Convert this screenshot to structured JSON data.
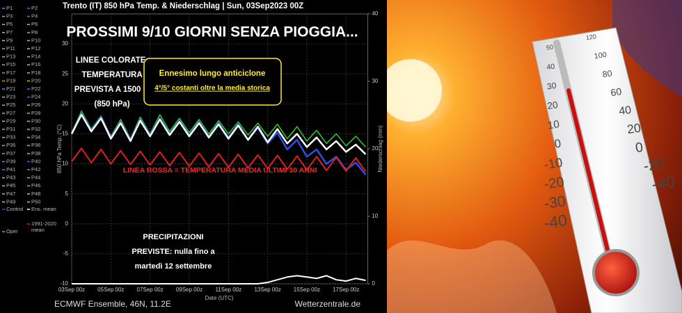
{
  "chart_data": {
    "type": "line",
    "title": "Trento  (IT)  850 hPa Temp. & Niederschlag | Sun, 03Sep2023 00Z",
    "ylabel": "850 hPa Temp. (°C)",
    "y2label": "Niederschlag (mm)",
    "xlabel": "Date (UTC)",
    "source_left": "ECMWF Ensemble, 46N, 11.2E",
    "source_right": "Wetterzentrale.de",
    "categories": [
      "03Sep 00z",
      null,
      null,
      null,
      "05Sep 00z",
      null,
      null,
      null,
      "07Sep 00z",
      null,
      null,
      null,
      "09Sep 00z",
      null,
      null,
      null,
      "11Sep 00z",
      null,
      null,
      null,
      "13Sep 00z",
      null,
      null,
      null,
      "15Sep 00z",
      null,
      null,
      null,
      "17Sep 00z",
      null,
      null
    ],
    "ylim": [
      -10,
      35
    ],
    "yticks": [
      -10,
      -5,
      0,
      5,
      10,
      15,
      20,
      25,
      30
    ],
    "y2lim": [
      0,
      40
    ],
    "y2ticks": [
      0,
      10,
      20,
      30,
      40
    ],
    "grid": true,
    "series": [
      {
        "name": "Oper",
        "color": "#2ecc2e",
        "width": 1.5,
        "values": [
          15.2,
          18.8,
          15.8,
          18.0,
          14.6,
          17.4,
          14.2,
          17.8,
          15.0,
          18.2,
          15.4,
          17.6,
          15.2,
          17.4,
          15.0,
          17.2,
          15.0,
          17.0,
          14.8,
          16.8,
          14.6,
          16.6,
          14.2,
          16.2,
          13.8,
          15.6,
          13.4,
          15.0,
          13.0,
          14.6,
          12.8
        ]
      },
      {
        "name": "Control",
        "color": "#2f4fe0",
        "width": 2.5,
        "values": [
          15.1,
          18.4,
          15.6,
          17.8,
          14.4,
          17.0,
          14.0,
          17.4,
          14.8,
          17.6,
          15.0,
          17.2,
          14.8,
          17.0,
          14.6,
          16.8,
          14.4,
          16.6,
          14.0,
          16.0,
          13.4,
          15.2,
          12.4,
          14.0,
          11.2,
          12.4,
          10.0,
          11.2,
          9.0,
          10.2,
          8.2
        ]
      },
      {
        "name": "1991-2020 mean",
        "color": "#e02020",
        "width": 2,
        "values": [
          10.4,
          12.6,
          10.2,
          12.4,
          10.0,
          12.2,
          9.9,
          12.1,
          9.8,
          12.0,
          9.7,
          11.9,
          9.6,
          11.8,
          9.5,
          11.7,
          9.4,
          11.6,
          9.3,
          11.5,
          9.2,
          11.4,
          9.1,
          11.3,
          9.0,
          11.2,
          8.9,
          11.1,
          8.8,
          11.0,
          8.7
        ]
      },
      {
        "name": "Ens. mean",
        "color": "#ffffff",
        "width": 2.5,
        "values": [
          15.0,
          18.2,
          15.4,
          17.6,
          14.2,
          16.8,
          13.8,
          17.2,
          14.6,
          17.4,
          14.8,
          17.0,
          14.6,
          16.8,
          14.4,
          16.6,
          14.2,
          16.4,
          14.0,
          16.2,
          13.6,
          15.8,
          13.4,
          15.0,
          12.8,
          14.4,
          12.4,
          13.8,
          12.0,
          13.2,
          11.6
        ]
      },
      {
        "color": "#ffffff",
        "width": 2,
        "axis": "y2",
        "values": [
          0,
          0,
          0,
          0,
          0,
          0,
          0,
          0,
          0,
          0,
          0,
          0,
          0,
          0,
          0,
          0,
          0,
          0,
          0,
          0,
          0.2,
          0.6,
          1.0,
          1.2,
          1.0,
          0.8,
          1.2,
          0.6,
          0.4,
          0.8,
          0.5
        ]
      }
    ],
    "members": [
      {
        "name": "P1",
        "color": "#5b8cff"
      },
      {
        "name": "P2",
        "color": "#3a6cff"
      },
      {
        "name": "P3",
        "color": "#8fd14f"
      },
      {
        "name": "P4",
        "color": "#4a7bff"
      },
      {
        "name": "P5",
        "color": "#9fcf5f"
      },
      {
        "name": "P6",
        "color": "#7ee07e"
      },
      {
        "name": "P7",
        "color": "#c9b458"
      },
      {
        "name": "P8",
        "color": "#6fd06f"
      },
      {
        "name": "P9",
        "color": "#d0c060"
      },
      {
        "name": "P10",
        "color": "#9be05a"
      },
      {
        "name": "P11",
        "color": "#d4a050"
      },
      {
        "name": "P12",
        "color": "#b0d060"
      },
      {
        "name": "P13",
        "color": "#c9b458"
      },
      {
        "name": "P14",
        "color": "#a0d050"
      },
      {
        "name": "P15",
        "color": "#e0a040"
      },
      {
        "name": "P16",
        "color": "#c0c050"
      },
      {
        "name": "P17",
        "color": "#d09050"
      },
      {
        "name": "P18",
        "color": "#b8c060"
      },
      {
        "name": "P19",
        "color": "#e08a40"
      },
      {
        "name": "P20",
        "color": "#c8b860"
      },
      {
        "name": "P21",
        "color": "#5b8cff"
      },
      {
        "name": "P22",
        "color": "#4a7bff"
      },
      {
        "name": "P23",
        "color": "#9fcf5f"
      },
      {
        "name": "P24",
        "color": "#3a6cff"
      },
      {
        "name": "P25",
        "color": "#8fd14f"
      },
      {
        "name": "P26",
        "color": "#7ee07e"
      },
      {
        "name": "P27",
        "color": "#c9b458"
      },
      {
        "name": "P28",
        "color": "#6fd06f"
      },
      {
        "name": "P29",
        "color": "#d0c060"
      },
      {
        "name": "P30",
        "color": "#9be05a"
      },
      {
        "name": "P31",
        "color": "#d4a050"
      },
      {
        "name": "P32",
        "color": "#b0d060"
      },
      {
        "name": "P33",
        "color": "#c9b458"
      },
      {
        "name": "P34",
        "color": "#a0d050"
      },
      {
        "name": "P35",
        "color": "#e0a040"
      },
      {
        "name": "P36",
        "color": "#c0c050"
      },
      {
        "name": "P37",
        "color": "#d09050"
      },
      {
        "name": "P38",
        "color": "#b8c060"
      },
      {
        "name": "P39",
        "color": "#5b8cff"
      },
      {
        "name": "P40",
        "color": "#3a6cff"
      },
      {
        "name": "P41",
        "color": "#4a7bff"
      },
      {
        "name": "P42",
        "color": "#5b8cff"
      },
      {
        "name": "P43",
        "color": "#9fcf5f"
      },
      {
        "name": "P44",
        "color": "#8fd14f"
      },
      {
        "name": "P45",
        "color": "#7ee07e"
      },
      {
        "name": "P46",
        "color": "#6fd06f"
      },
      {
        "name": "P47",
        "color": "#c9b458"
      },
      {
        "name": "P48",
        "color": "#9be05a"
      },
      {
        "name": "P49",
        "color": "#d0c060"
      },
      {
        "name": "P50",
        "color": "#b0d060"
      }
    ],
    "annotations": [
      {
        "text": "PROSSIMI 9/10 GIORNI SENZA PIOGGIA..."
      },
      {
        "lines": [
          "LINEE COLORATE:",
          "TEMPERATURA",
          "PREVISTA A 1500 M",
          "(850 hPa)"
        ]
      },
      {
        "lines": [
          "Ennesimo lungo anticiclone",
          "4°/5° costanti oltre la media storica"
        ]
      },
      {
        "text": "LINEA ROSSA = TEMPERATURA MEDIA ULTIMI 30 ANNI"
      },
      {
        "lines": [
          "PRECIPITAZIONI",
          "PREVISTE: nulla fino a",
          "martedì 12 settembre"
        ]
      }
    ]
  },
  "thermometer": {
    "celsius": [
      "50",
      "40",
      "30",
      "20",
      "10",
      "0",
      "-10",
      "-20",
      "-30",
      "-40"
    ],
    "fahrenheit": [
      "120",
      "100",
      "80",
      "60",
      "40",
      "20",
      "0",
      "-20",
      "-40"
    ]
  }
}
